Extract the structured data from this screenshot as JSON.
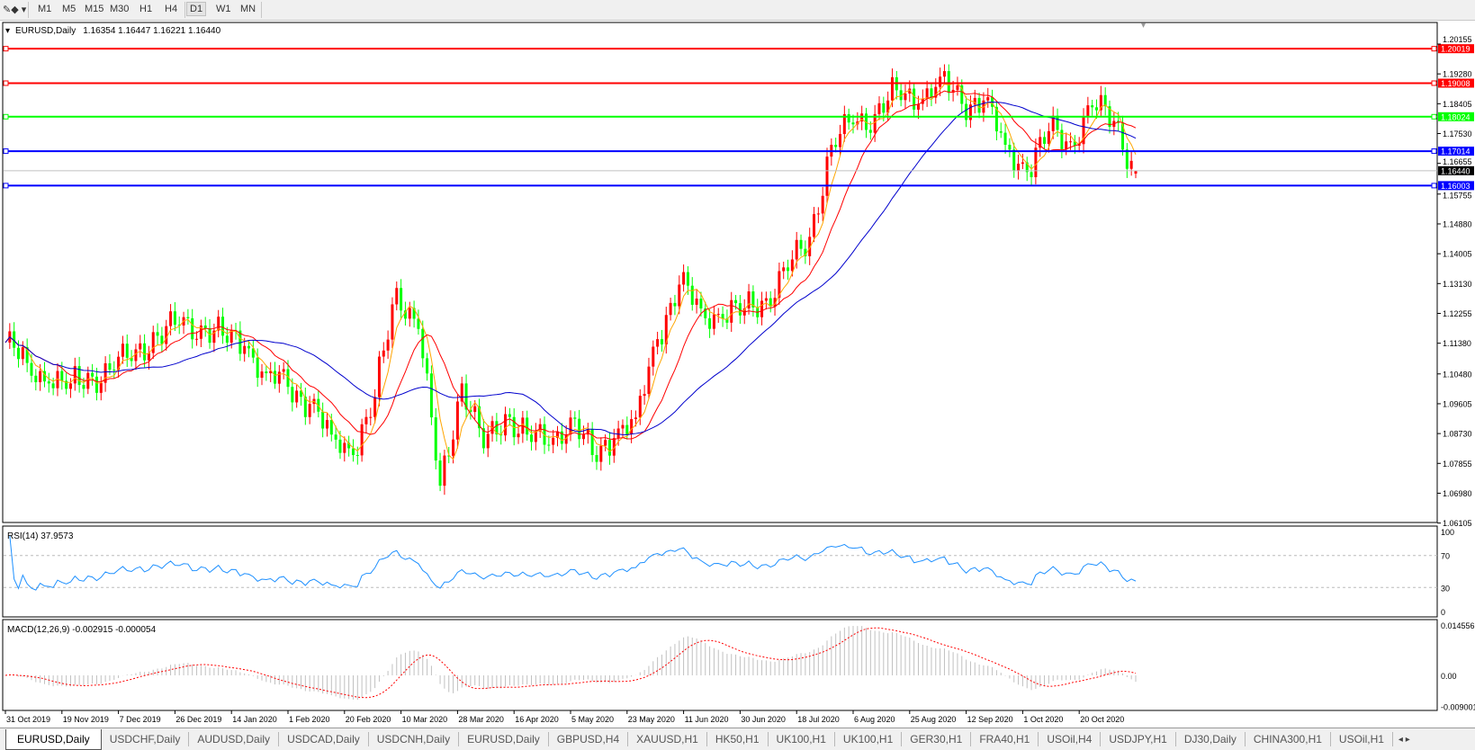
{
  "toolbar": {
    "timeframes": [
      "M1",
      "M5",
      "M15",
      "M30",
      "H1",
      "H4",
      "D1",
      "W1",
      "MN"
    ],
    "active_timeframe": "D1",
    "draw_tool_icon": "line-tools-icon"
  },
  "chart_header": {
    "symbol": "EURUSD,Daily",
    "ohlc": "1.16354 1.16447 1.16221 1.16440"
  },
  "chart_data": {
    "type": "candlestick",
    "symbol": "EURUSD",
    "timeframe": "Daily",
    "last": {
      "open": 1.16354,
      "high": 1.16447,
      "low": 1.16221,
      "close": 1.1644
    },
    "ylim": [
      1.06105,
      1.20155
    ],
    "price_ticks": [
      "1.20155",
      "1.19280",
      "1.18405",
      "1.17530",
      "1.16655",
      "1.15755",
      "1.14880",
      "1.14005",
      "1.13130",
      "1.12255",
      "1.11380",
      "1.10480",
      "1.09605",
      "1.08730",
      "1.07855",
      "1.06980",
      "1.06105"
    ],
    "x_ticks": [
      "31 Oct 2019",
      "19 Nov 2019",
      "7 Dec 2019",
      "26 Dec 2019",
      "14 Jan 2020",
      "1 Feb 2020",
      "20 Feb 2020",
      "10 Mar 2020",
      "28 Mar 2020",
      "16 Apr 2020",
      "5 May 2020",
      "23 May 2020",
      "11 Jun 2020",
      "30 Jun 2020",
      "18 Jul 2020",
      "6 Aug 2020",
      "25 Aug 2020",
      "12 Sep 2020",
      "1 Oct 2020",
      "20 Oct 2020"
    ],
    "weekly_closes": [
      1.114,
      1.108,
      1.102,
      1.102,
      1.104,
      1.106,
      1.112,
      1.116,
      1.119,
      1.119,
      1.116,
      1.113,
      1.105,
      1.101,
      1.096,
      1.087,
      1.081,
      1.098,
      1.13,
      1.118,
      1.072,
      1.102,
      1.083,
      1.093,
      1.087,
      1.084,
      1.092,
      1.081,
      1.086,
      1.092,
      1.115,
      1.131,
      1.124,
      1.121,
      1.124,
      1.127,
      1.135,
      1.145,
      1.172,
      1.178,
      1.181,
      1.188,
      1.184,
      1.192,
      1.184,
      1.185,
      1.172,
      1.164,
      1.176,
      1.173,
      1.183,
      1.179,
      1.1644
    ],
    "horizontal_lines": [
      {
        "price": "1.20019",
        "color": "#ff0000"
      },
      {
        "price": "1.19008",
        "color": "#ff0000"
      },
      {
        "price": "1.18024",
        "color": "#00ff00"
      },
      {
        "price": "1.17014",
        "color": "#0000ff"
      },
      {
        "price": "1.16003",
        "color": "#0000ff"
      }
    ],
    "current_price": "1.16440",
    "colors": {
      "bull": "#ff0000",
      "bear": "#00ff00",
      "ma_fast": "#ffa500",
      "ma_mid": "#ff0000",
      "ma_slow": "#0000cd"
    },
    "rsi": {
      "label": "RSI(14) 37.9573",
      "ticks": [
        "100",
        "70",
        "30",
        "0"
      ],
      "levels": [
        70,
        30
      ],
      "color": "#1e90ff"
    },
    "macd": {
      "label": "MACD(12,26,9) -0.002915 -0.000054",
      "ticks": [
        "0.014556",
        "0.00",
        "-0.009001"
      ],
      "ylim": [
        -0.009001,
        0.014556
      ],
      "hist_color": "#c0c0c0",
      "signal_color": "#ff0000"
    }
  },
  "tabs": [
    "EURUSD,Daily",
    "USDCHF,Daily",
    "AUDUSD,Daily",
    "USDCAD,Daily",
    "USDCNH,Daily",
    "EURUSD,Daily",
    "GBPUSD,H4",
    "XAUUSD,H1",
    "HK50,H1",
    "UK100,H1",
    "UK100,H1",
    "GER30,H1",
    "FRA40,H1",
    "USOil,H4",
    "USDJPY,H1",
    "DJ30,Daily",
    "CHINA300,H1",
    "USOil,H1"
  ],
  "active_tab": "EURUSD,Daily"
}
